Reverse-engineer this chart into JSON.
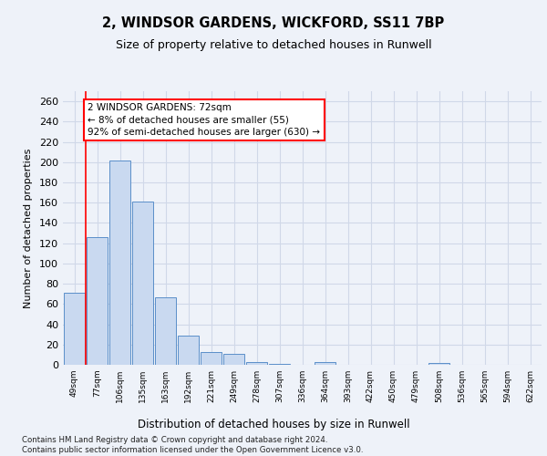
{
  "title1": "2, WINDSOR GARDENS, WICKFORD, SS11 7BP",
  "title2": "Size of property relative to detached houses in Runwell",
  "xlabel": "Distribution of detached houses by size in Runwell",
  "ylabel": "Number of detached properties",
  "categories": [
    "49sqm",
    "77sqm",
    "106sqm",
    "135sqm",
    "163sqm",
    "192sqm",
    "221sqm",
    "249sqm",
    "278sqm",
    "307sqm",
    "336sqm",
    "364sqm",
    "393sqm",
    "422sqm",
    "450sqm",
    "479sqm",
    "508sqm",
    "536sqm",
    "565sqm",
    "594sqm",
    "622sqm"
  ],
  "values": [
    71,
    126,
    202,
    161,
    67,
    29,
    13,
    11,
    3,
    1,
    0,
    3,
    0,
    0,
    0,
    0,
    2,
    0,
    0,
    0,
    0
  ],
  "bar_color": "#c9d9f0",
  "bar_edge_color": "#5b8fc9",
  "grid_color": "#d0d8e8",
  "annotation_text": "2 WINDSOR GARDENS: 72sqm\n← 8% of detached houses are smaller (55)\n92% of semi-detached houses are larger (630) →",
  "annotation_box_color": "white",
  "annotation_box_edge_color": "red",
  "marker_line_color": "red",
  "ylim": [
    0,
    270
  ],
  "yticks": [
    0,
    20,
    40,
    60,
    80,
    100,
    120,
    140,
    160,
    180,
    200,
    220,
    240,
    260
  ],
  "footer": "Contains HM Land Registry data © Crown copyright and database right 2024.\nContains public sector information licensed under the Open Government Licence v3.0.",
  "bg_color": "#eef2f9"
}
